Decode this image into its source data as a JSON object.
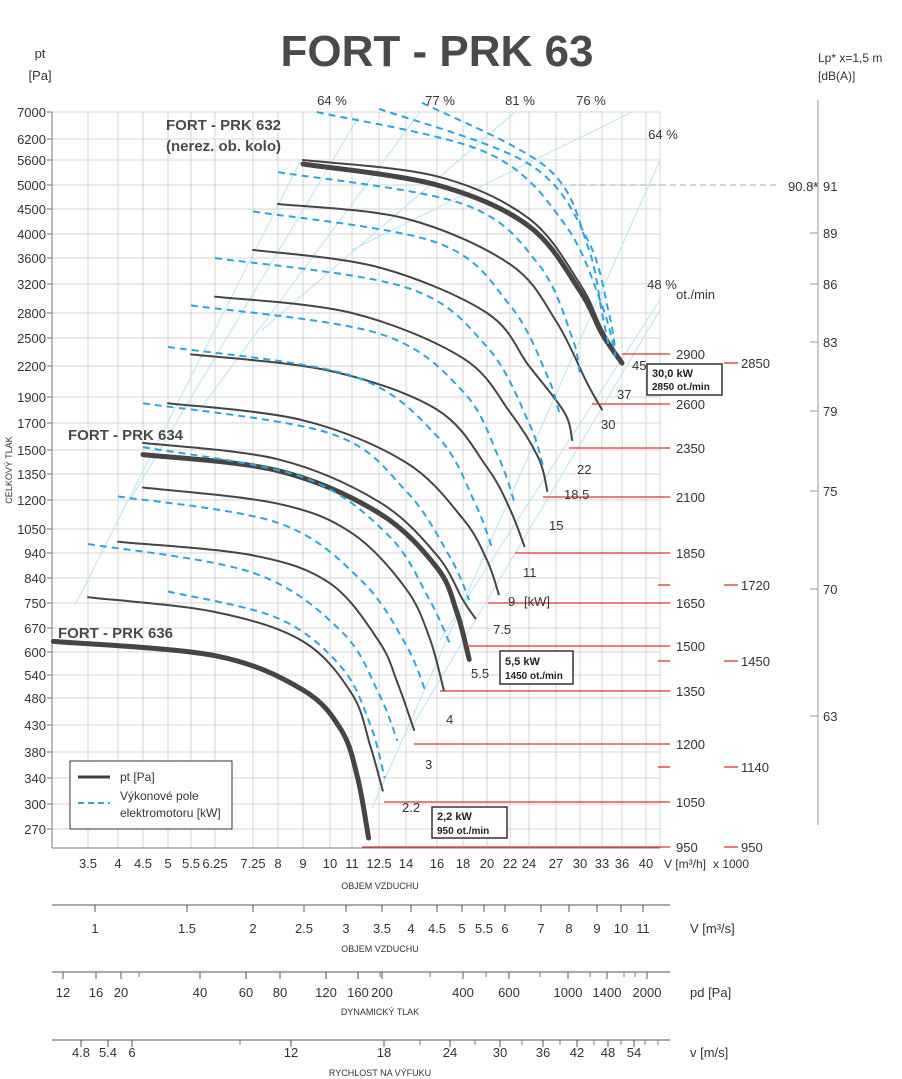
{
  "chart_data": {
    "type": "line",
    "title": "FORT - PRK 63",
    "y_unit_top": "pt",
    "y_unit_bottom": "[Pa]",
    "ylabel": "CELKOVÝ TLAK",
    "right_unit_top": "Lp* x=1,5 m",
    "right_unit_bottom": "[dB(A)]",
    "y_ticks": [
      "7000",
      "6200",
      "5600",
      "5000",
      "4500",
      "4000",
      "3600",
      "3200",
      "2800",
      "2500",
      "2200",
      "1900",
      "1700",
      "1500",
      "1350",
      "1200",
      "1050",
      "940",
      "840",
      "750",
      "670",
      "600",
      "540",
      "480",
      "430",
      "380",
      "340",
      "300",
      "270"
    ],
    "x_ticks": [
      "3.5",
      "4",
      "4.5",
      "5",
      "5.5",
      "6.25",
      "7.25",
      "8",
      "9",
      "10",
      "11",
      "12.5",
      "14",
      "16",
      "18",
      "20",
      "22",
      "24",
      "27",
      "30",
      "33",
      "36",
      "40"
    ],
    "xlabel_unit": "V [m³/h]",
    "x_multiplier": "x 1000",
    "xlabel": "OBJEM VZDUCHU",
    "scale_v_unit": "V  [m³/s]",
    "scale_v_ticks": [
      "1",
      "1.5",
      "2",
      "2.5",
      "3",
      "3.5",
      "4",
      "4.5",
      "5",
      "5.5",
      "6",
      "7",
      "8",
      "9",
      "10",
      "11"
    ],
    "scale_v_label": "OBJEM VZDUCHU",
    "scale_pd_unit": "pd  [Pa]",
    "scale_pd_ticks": [
      "12",
      "16",
      "20",
      "40",
      "60",
      "80",
      "120",
      "160",
      "200",
      "400",
      "600",
      "1000",
      "1400",
      "2000"
    ],
    "scale_pd_label": "DYNAMICKÝ TLAK",
    "scale_w_unit": "v  [m/s]",
    "scale_w_ticks": [
      "4.8",
      "5.4",
      "6",
      "12",
      "18",
      "24",
      "30",
      "36",
      "42",
      "48",
      "54"
    ],
    "scale_w_label": "RYCHLOST NA VÝFUKU",
    "efficiency_labels": [
      "64 %",
      "77 %",
      "81 %",
      "76 %",
      "64 %",
      "48 %"
    ],
    "rpm_unit": "ot./min",
    "rpm_values": [
      "2900",
      "2600",
      "2350",
      "2100",
      "1850",
      "1650",
      "1500",
      "1350",
      "1200",
      "1050",
      "950"
    ],
    "rpm_alt_values": [
      "2850",
      "1720",
      "1450",
      "1140",
      "950"
    ],
    "db_values": [
      "91",
      "89",
      "86",
      "83",
      "79",
      "75",
      "70",
      "63"
    ],
    "db_marker": "90.8*",
    "power_values": [
      "45",
      "37",
      "30",
      "22",
      "18.5",
      "15",
      "11",
      "9",
      "7.5",
      "5.5",
      "4",
      "3",
      "2.2"
    ],
    "power_unit": "[kW]",
    "model_labels": [
      "FORT - PRK 632",
      "(nerez. ob. kolo)",
      "FORT - PRK 634",
      "FORT - PRK 636"
    ],
    "boxes": [
      {
        "line1": "30,0 kW",
        "line2": "2850 ot./min"
      },
      {
        "line1": "5,5 kW",
        "line2": "1450 ot./min"
      },
      {
        "line1": "2,2 kW",
        "line2": "950 ot./min"
      }
    ],
    "legend": [
      {
        "label": "pt [Pa]",
        "style": "solid",
        "color": "#404040"
      },
      {
        "label": "Výkonové pole",
        "label2": "elektromotoru [kW]",
        "style": "dashed",
        "color": "#2ba6dc"
      }
    ],
    "series": [
      {
        "kind": "fan",
        "speed": "2900",
        "points": [
          [
            9,
            5600
          ],
          [
            16,
            5200
          ],
          [
            24,
            4300
          ],
          [
            30,
            3200
          ],
          [
            33,
            2600
          ],
          [
            36,
            2230
          ]
        ]
      },
      {
        "kind": "fan",
        "speed": "2850",
        "bold": true,
        "points": [
          [
            9,
            5500
          ],
          [
            16,
            5000
          ],
          [
            24,
            4150
          ],
          [
            30,
            3100
          ],
          [
            33,
            2550
          ],
          [
            36,
            2230
          ]
        ]
      },
      {
        "kind": "fan",
        "speed": "2600",
        "points": [
          [
            8,
            4600
          ],
          [
            14,
            4300
          ],
          [
            22,
            3500
          ],
          [
            27,
            2700
          ],
          [
            31,
            2020
          ],
          [
            33,
            1800
          ]
        ]
      },
      {
        "kind": "fan",
        "speed": "2350",
        "points": [
          [
            7.25,
            3730
          ],
          [
            12.5,
            3450
          ],
          [
            20,
            2800
          ],
          [
            24,
            2200
          ],
          [
            28,
            1780
          ],
          [
            29,
            1570
          ]
        ]
      },
      {
        "kind": "fan",
        "speed": "2100",
        "points": [
          [
            6.25,
            3020
          ],
          [
            11,
            2800
          ],
          [
            18,
            2280
          ],
          [
            22,
            1780
          ],
          [
            25,
            1450
          ],
          [
            26,
            1250
          ]
        ]
      },
      {
        "kind": "fan",
        "speed": "1850",
        "points": [
          [
            5.5,
            2320
          ],
          [
            10,
            2150
          ],
          [
            16,
            1800
          ],
          [
            20,
            1390
          ],
          [
            22,
            1150
          ],
          [
            23.5,
            970
          ]
        ]
      },
      {
        "kind": "fan",
        "speed": "1650",
        "points": [
          [
            5,
            1850
          ],
          [
            9,
            1720
          ],
          [
            14,
            1420
          ],
          [
            18,
            1100
          ],
          [
            20,
            910
          ],
          [
            21,
            780
          ]
        ]
      },
      {
        "kind": "fan",
        "speed": "1500",
        "points": [
          [
            4.5,
            1550
          ],
          [
            8,
            1440
          ],
          [
            12.5,
            1190
          ],
          [
            16,
            930
          ],
          [
            18,
            760
          ],
          [
            19,
            700
          ]
        ]
      },
      {
        "kind": "fan",
        "speed": "1450",
        "bold": true,
        "points": [
          [
            4.5,
            1470
          ],
          [
            8,
            1370
          ],
          [
            12.5,
            1130
          ],
          [
            16,
            880
          ],
          [
            17.5,
            720
          ],
          [
            18.5,
            580
          ]
        ]
      },
      {
        "kind": "fan",
        "speed": "1350",
        "points": [
          [
            4.5,
            1270
          ],
          [
            8,
            1180
          ],
          [
            11,
            1030
          ],
          [
            14,
            800
          ],
          [
            15.5,
            640
          ],
          [
            16.5,
            500
          ]
        ]
      },
      {
        "kind": "fan",
        "speed": "1200",
        "points": [
          [
            4,
            990
          ],
          [
            7.25,
            930
          ],
          [
            10,
            820
          ],
          [
            12.5,
            630
          ],
          [
            13.5,
            520
          ],
          [
            14.5,
            420
          ]
        ]
      },
      {
        "kind": "fan",
        "speed": "1050",
        "points": [
          [
            3.5,
            770
          ],
          [
            6.25,
            720
          ],
          [
            9,
            630
          ],
          [
            11,
            490
          ],
          [
            12,
            390
          ],
          [
            12.7,
            320
          ]
        ]
      },
      {
        "kind": "fan",
        "speed": "950",
        "bold": true,
        "points": [
          [
            3,
            630
          ],
          [
            6.25,
            590
          ],
          [
            9,
            500
          ],
          [
            10.5,
            420
          ],
          [
            11.3,
            340
          ],
          [
            11.9,
            260
          ]
        ]
      },
      {
        "kind": "power",
        "points": [
          [
            9.5,
            7000
          ],
          [
            20,
            5800
          ],
          [
            28,
            4200
          ],
          [
            33,
            2900
          ],
          [
            35,
            2300
          ]
        ]
      },
      {
        "kind": "power",
        "points": [
          [
            12.5,
            7100
          ],
          [
            24,
            5500
          ],
          [
            31,
            3900
          ],
          [
            34,
            2800
          ],
          [
            35,
            2350
          ]
        ]
      },
      {
        "kind": "power",
        "points": [
          [
            15,
            7300
          ],
          [
            26,
            5400
          ],
          [
            31,
            3800
          ],
          [
            33,
            2800
          ],
          [
            34,
            2400
          ]
        ]
      },
      {
        "kind": "power",
        "points": [
          [
            8,
            5300
          ],
          [
            18,
            4600
          ],
          [
            25,
            3500
          ],
          [
            29,
            2500
          ],
          [
            30,
            2100
          ]
        ]
      },
      {
        "kind": "power",
        "points": [
          [
            7.25,
            4450
          ],
          [
            16,
            3850
          ],
          [
            22,
            2900
          ],
          [
            26,
            2100
          ],
          [
            27.5,
            1750
          ]
        ]
      },
      {
        "kind": "power",
        "points": [
          [
            6.25,
            3600
          ],
          [
            14,
            3150
          ],
          [
            20,
            2400
          ],
          [
            24,
            1700
          ],
          [
            25.5,
            1400
          ]
        ]
      },
      {
        "kind": "power",
        "points": [
          [
            5.5,
            2900
          ],
          [
            12.5,
            2550
          ],
          [
            18,
            1950
          ],
          [
            21,
            1450
          ],
          [
            22.5,
            1180
          ]
        ]
      },
      {
        "kind": "power",
        "points": [
          [
            5,
            2400
          ],
          [
            11,
            2100
          ],
          [
            16,
            1600
          ],
          [
            19,
            1180
          ],
          [
            20.5,
            950
          ]
        ]
      },
      {
        "kind": "power",
        "points": [
          [
            4.5,
            1850
          ],
          [
            10,
            1620
          ],
          [
            14,
            1250
          ],
          [
            17,
            920
          ],
          [
            18.5,
            760
          ]
        ]
      },
      {
        "kind": "power",
        "points": [
          [
            4.5,
            1520
          ],
          [
            9,
            1330
          ],
          [
            13,
            1020
          ],
          [
            15.5,
            760
          ],
          [
            17,
            620
          ]
        ]
      },
      {
        "kind": "power",
        "points": [
          [
            4,
            1220
          ],
          [
            8,
            1080
          ],
          [
            11.5,
            830
          ],
          [
            14,
            620
          ],
          [
            15.2,
            500
          ]
        ]
      },
      {
        "kind": "power",
        "points": [
          [
            3.5,
            980
          ],
          [
            7.25,
            860
          ],
          [
            10.5,
            660
          ],
          [
            12.5,
            490
          ],
          [
            13.5,
            400
          ]
        ]
      },
      {
        "kind": "power",
        "points": [
          [
            5,
            790
          ],
          [
            8,
            700
          ],
          [
            10.5,
            560
          ],
          [
            12,
            430
          ],
          [
            12.8,
            340
          ]
        ]
      }
    ]
  }
}
